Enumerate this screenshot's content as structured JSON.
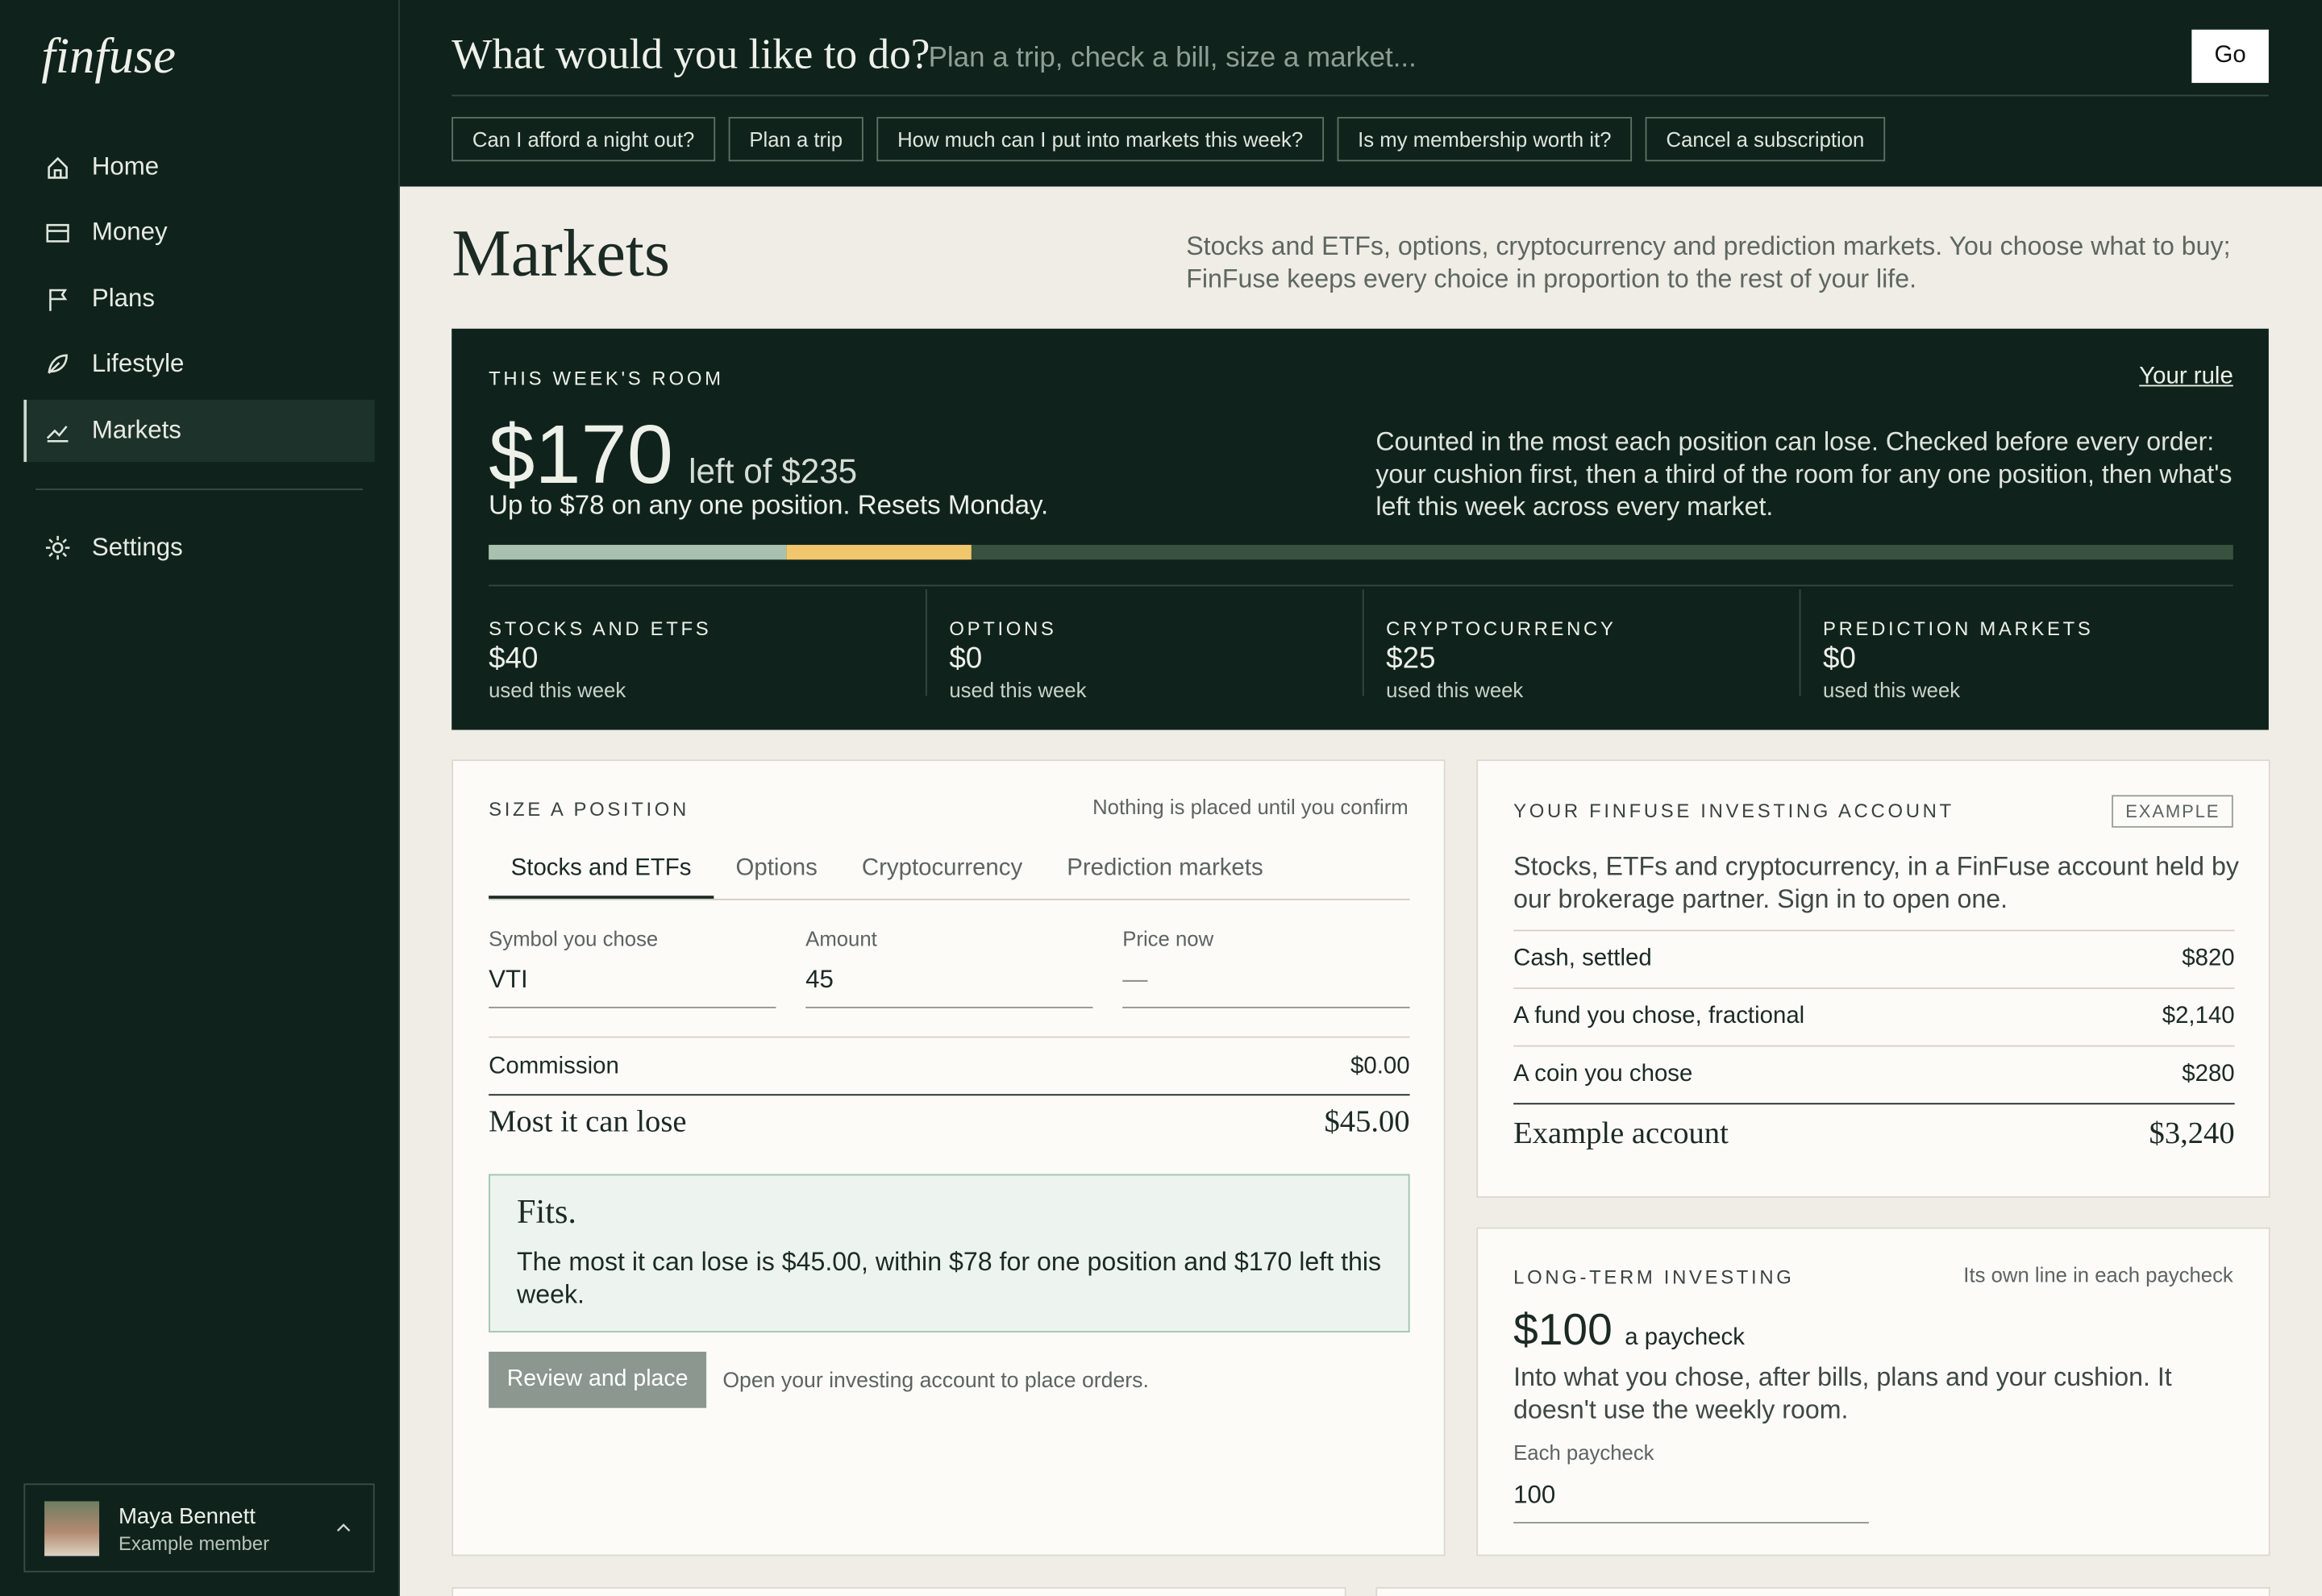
{
  "brand": "finfuse",
  "nav": [
    "Home",
    "Money",
    "Plans",
    "Lifestyle",
    "Markets"
  ],
  "active_nav": 4,
  "settings": "Settings",
  "user": {
    "name": "Maya Bennett",
    "role": "Example member"
  },
  "ask": {
    "prompt": "What would you like to do?",
    "placeholder": "Plan a trip, check a bill, size a market...",
    "button": "Go",
    "suggestions": [
      "Can I afford a night out?",
      "Plan a trip",
      "How much can I put into markets this week?",
      "Is my membership worth it?",
      "Cancel a subscription"
    ]
  },
  "page": {
    "title": "Markets",
    "intro": "Stocks and ETFs, options, cryptocurrency and prediction markets. You choose what to buy; FinFuse keeps every choice in proportion to the rest of your life."
  },
  "room": {
    "label": "THIS WEEK'S ROOM",
    "link": "Your rule",
    "amount": "$170",
    "of": "left of $235",
    "note": "Up to $78 on any one position. Resets Monday.",
    "description": "Counted in the most each position can lose. Checked before every order: your cushion first, then a third of the room for any one position, then what's left this week across every market.",
    "markets": [
      {
        "name": "STOCKS AND ETFS",
        "amount": "$40",
        "note": "used this week",
        "color": "#a8c0ae"
      },
      {
        "name": "OPTIONS",
        "amount": "$0",
        "note": "used this week",
        "color": "#7fa08c"
      },
      {
        "name": "CRYPTOCURRENCY",
        "amount": "$25",
        "note": "used this week",
        "color": "#f1c66c"
      },
      {
        "name": "PREDICTION MARKETS",
        "amount": "$0",
        "note": "used this week",
        "color": "#c9a3d9"
      }
    ],
    "track_color": "#38523f"
  },
  "size": {
    "label": "SIZE A POSITION",
    "note": "Nothing is placed until you confirm",
    "tabs": [
      "Stocks and ETFs",
      "Options",
      "Cryptocurrency",
      "Prediction markets"
    ],
    "active_tab": 0,
    "fields": [
      {
        "label": "Symbol you chose",
        "value": "VTI"
      },
      {
        "label": "Amount",
        "value": "45"
      },
      {
        "label": "Price now",
        "value": "—"
      }
    ],
    "commission": {
      "label": "Commission",
      "value": "$0.00"
    },
    "most": {
      "label": "Most it can lose",
      "value": "$45.00"
    },
    "fits": {
      "title": "Fits.",
      "text": "The most it can lose is $45.00, within $78 for one position and $170 left this week."
    },
    "button": "Review and place",
    "button_note": "Open your investing account to place orders."
  },
  "account": {
    "label": "YOUR FINFUSE INVESTING ACCOUNT",
    "badge": "EXAMPLE",
    "text": "Stocks, ETFs and cryptocurrency, in a FinFuse account held by our brokerage partner. Sign in to open one.",
    "rows": [
      [
        "Cash, settled",
        "$820"
      ],
      [
        "A fund you chose, fractional",
        "$2,140"
      ],
      [
        "A coin you chose",
        "$280"
      ]
    ],
    "total": [
      "Example account",
      "$3,240"
    ]
  },
  "longterm": {
    "label": "LONG-TERM INVESTING",
    "note": "Its own line in each paycheck",
    "amount": "$100",
    "unit": "a paycheck",
    "text": "Into what you chose, after bills, plans and your cushion. It doesn't use the weekly room.",
    "field_label": "Each paycheck",
    "field_value": "100"
  }
}
